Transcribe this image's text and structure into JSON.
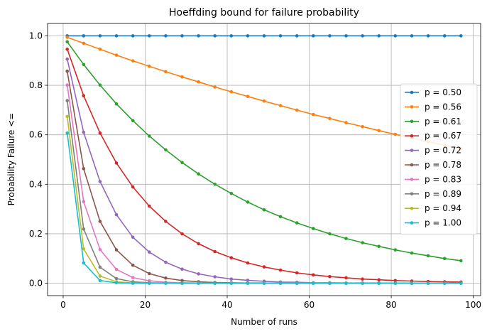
{
  "chart_data": {
    "type": "line",
    "title": "Hoeffding bound for failure probability",
    "xlabel": "Number of runs",
    "ylabel": "Probability Failure <=",
    "xlim": [
      -3.8,
      101.8
    ],
    "ylim": [
      -0.05,
      1.05
    ],
    "xticks": [
      0,
      20,
      40,
      60,
      80,
      100
    ],
    "yticks": [
      0.0,
      0.2,
      0.4,
      0.6,
      0.8,
      1.0
    ],
    "grid": true,
    "legend_position": "center-right",
    "x": [
      1,
      5,
      9,
      13,
      17,
      21,
      25,
      29,
      33,
      37,
      41,
      45,
      49,
      53,
      57,
      61,
      65,
      69,
      73,
      77,
      81,
      85,
      89,
      93,
      97
    ],
    "series": [
      {
        "name": "p = 0.50",
        "color": "#1f77b4",
        "values": [
          1.0,
          1.0,
          1.0,
          1.0,
          1.0,
          1.0,
          1.0,
          1.0,
          1.0,
          1.0,
          1.0,
          1.0,
          1.0,
          1.0,
          1.0,
          1.0,
          1.0,
          1.0,
          1.0,
          1.0,
          1.0,
          1.0,
          1.0,
          1.0,
          1.0
        ]
      },
      {
        "name": "p = 0.56",
        "color": "#ff7f0e",
        "values": [
          0.994,
          0.97,
          0.946,
          0.922,
          0.899,
          0.877,
          0.855,
          0.834,
          0.814,
          0.793,
          0.774,
          0.755,
          0.736,
          0.718,
          0.7,
          0.682,
          0.666,
          0.649,
          0.633,
          0.617,
          0.602,
          0.587,
          0.572,
          0.558,
          0.544
        ]
      },
      {
        "name": "p = 0.61",
        "color": "#2ca02c",
        "values": [
          0.976,
          0.884,
          0.801,
          0.725,
          0.657,
          0.595,
          0.539,
          0.488,
          0.442,
          0.4,
          0.363,
          0.328,
          0.297,
          0.269,
          0.244,
          0.221,
          0.2,
          0.181,
          0.164,
          0.149,
          0.135,
          0.122,
          0.111,
          0.1,
          0.091
        ]
      },
      {
        "name": "p = 0.67",
        "color": "#d62728",
        "values": [
          0.946,
          0.758,
          0.607,
          0.486,
          0.389,
          0.312,
          0.25,
          0.2,
          0.16,
          0.128,
          0.103,
          0.082,
          0.066,
          0.053,
          0.042,
          0.034,
          0.027,
          0.022,
          0.017,
          0.014,
          0.011,
          0.009,
          0.007,
          0.006,
          0.005
        ]
      },
      {
        "name": "p = 0.72",
        "color": "#9467bd",
        "values": [
          0.906,
          0.61,
          0.411,
          0.277,
          0.186,
          0.126,
          0.085,
          0.057,
          0.038,
          0.026,
          0.017,
          0.012,
          0.008,
          0.005,
          0.004,
          0.002,
          0.002,
          0.001,
          0.001,
          0.001,
          0.0,
          0.0,
          0.0,
          0.0,
          0.0
        ]
      },
      {
        "name": "p = 0.78",
        "color": "#8c564b",
        "values": [
          0.857,
          0.463,
          0.25,
          0.135,
          0.073,
          0.039,
          0.021,
          0.011,
          0.006,
          0.003,
          0.002,
          0.001,
          0.001,
          0.0,
          0.0,
          0.0,
          0.0,
          0.0,
          0.0,
          0.0,
          0.0,
          0.0,
          0.0,
          0.0,
          0.0
        ]
      },
      {
        "name": "p = 0.83",
        "color": "#e377c2",
        "values": [
          0.801,
          0.33,
          0.136,
          0.056,
          0.023,
          0.01,
          0.004,
          0.002,
          0.001,
          0.0,
          0.0,
          0.0,
          0.0,
          0.0,
          0.0,
          0.0,
          0.0,
          0.0,
          0.0,
          0.0,
          0.0,
          0.0,
          0.0,
          0.0,
          0.0
        ]
      },
      {
        "name": "p = 0.89",
        "color": "#7f7f7f",
        "values": [
          0.738,
          0.219,
          0.065,
          0.019,
          0.006,
          0.002,
          0.001,
          0.0,
          0.0,
          0.0,
          0.0,
          0.0,
          0.0,
          0.0,
          0.0,
          0.0,
          0.0,
          0.0,
          0.0,
          0.0,
          0.0,
          0.0,
          0.0,
          0.0,
          0.0
        ]
      },
      {
        "name": "p = 0.94",
        "color": "#bcbd22",
        "values": [
          0.674,
          0.139,
          0.029,
          0.006,
          0.001,
          0.0,
          0.0,
          0.0,
          0.0,
          0.0,
          0.0,
          0.0,
          0.0,
          0.0,
          0.0,
          0.0,
          0.0,
          0.0,
          0.0,
          0.0,
          0.0,
          0.0,
          0.0,
          0.0,
          0.0
        ]
      },
      {
        "name": "p = 1.00",
        "color": "#17becf",
        "values": [
          0.607,
          0.082,
          0.011,
          0.002,
          0.0,
          0.0,
          0.0,
          0.0,
          0.0,
          0.0,
          0.0,
          0.0,
          0.0,
          0.0,
          0.0,
          0.0,
          0.0,
          0.0,
          0.0,
          0.0,
          0.0,
          0.0,
          0.0,
          0.0,
          0.0
        ]
      }
    ]
  }
}
